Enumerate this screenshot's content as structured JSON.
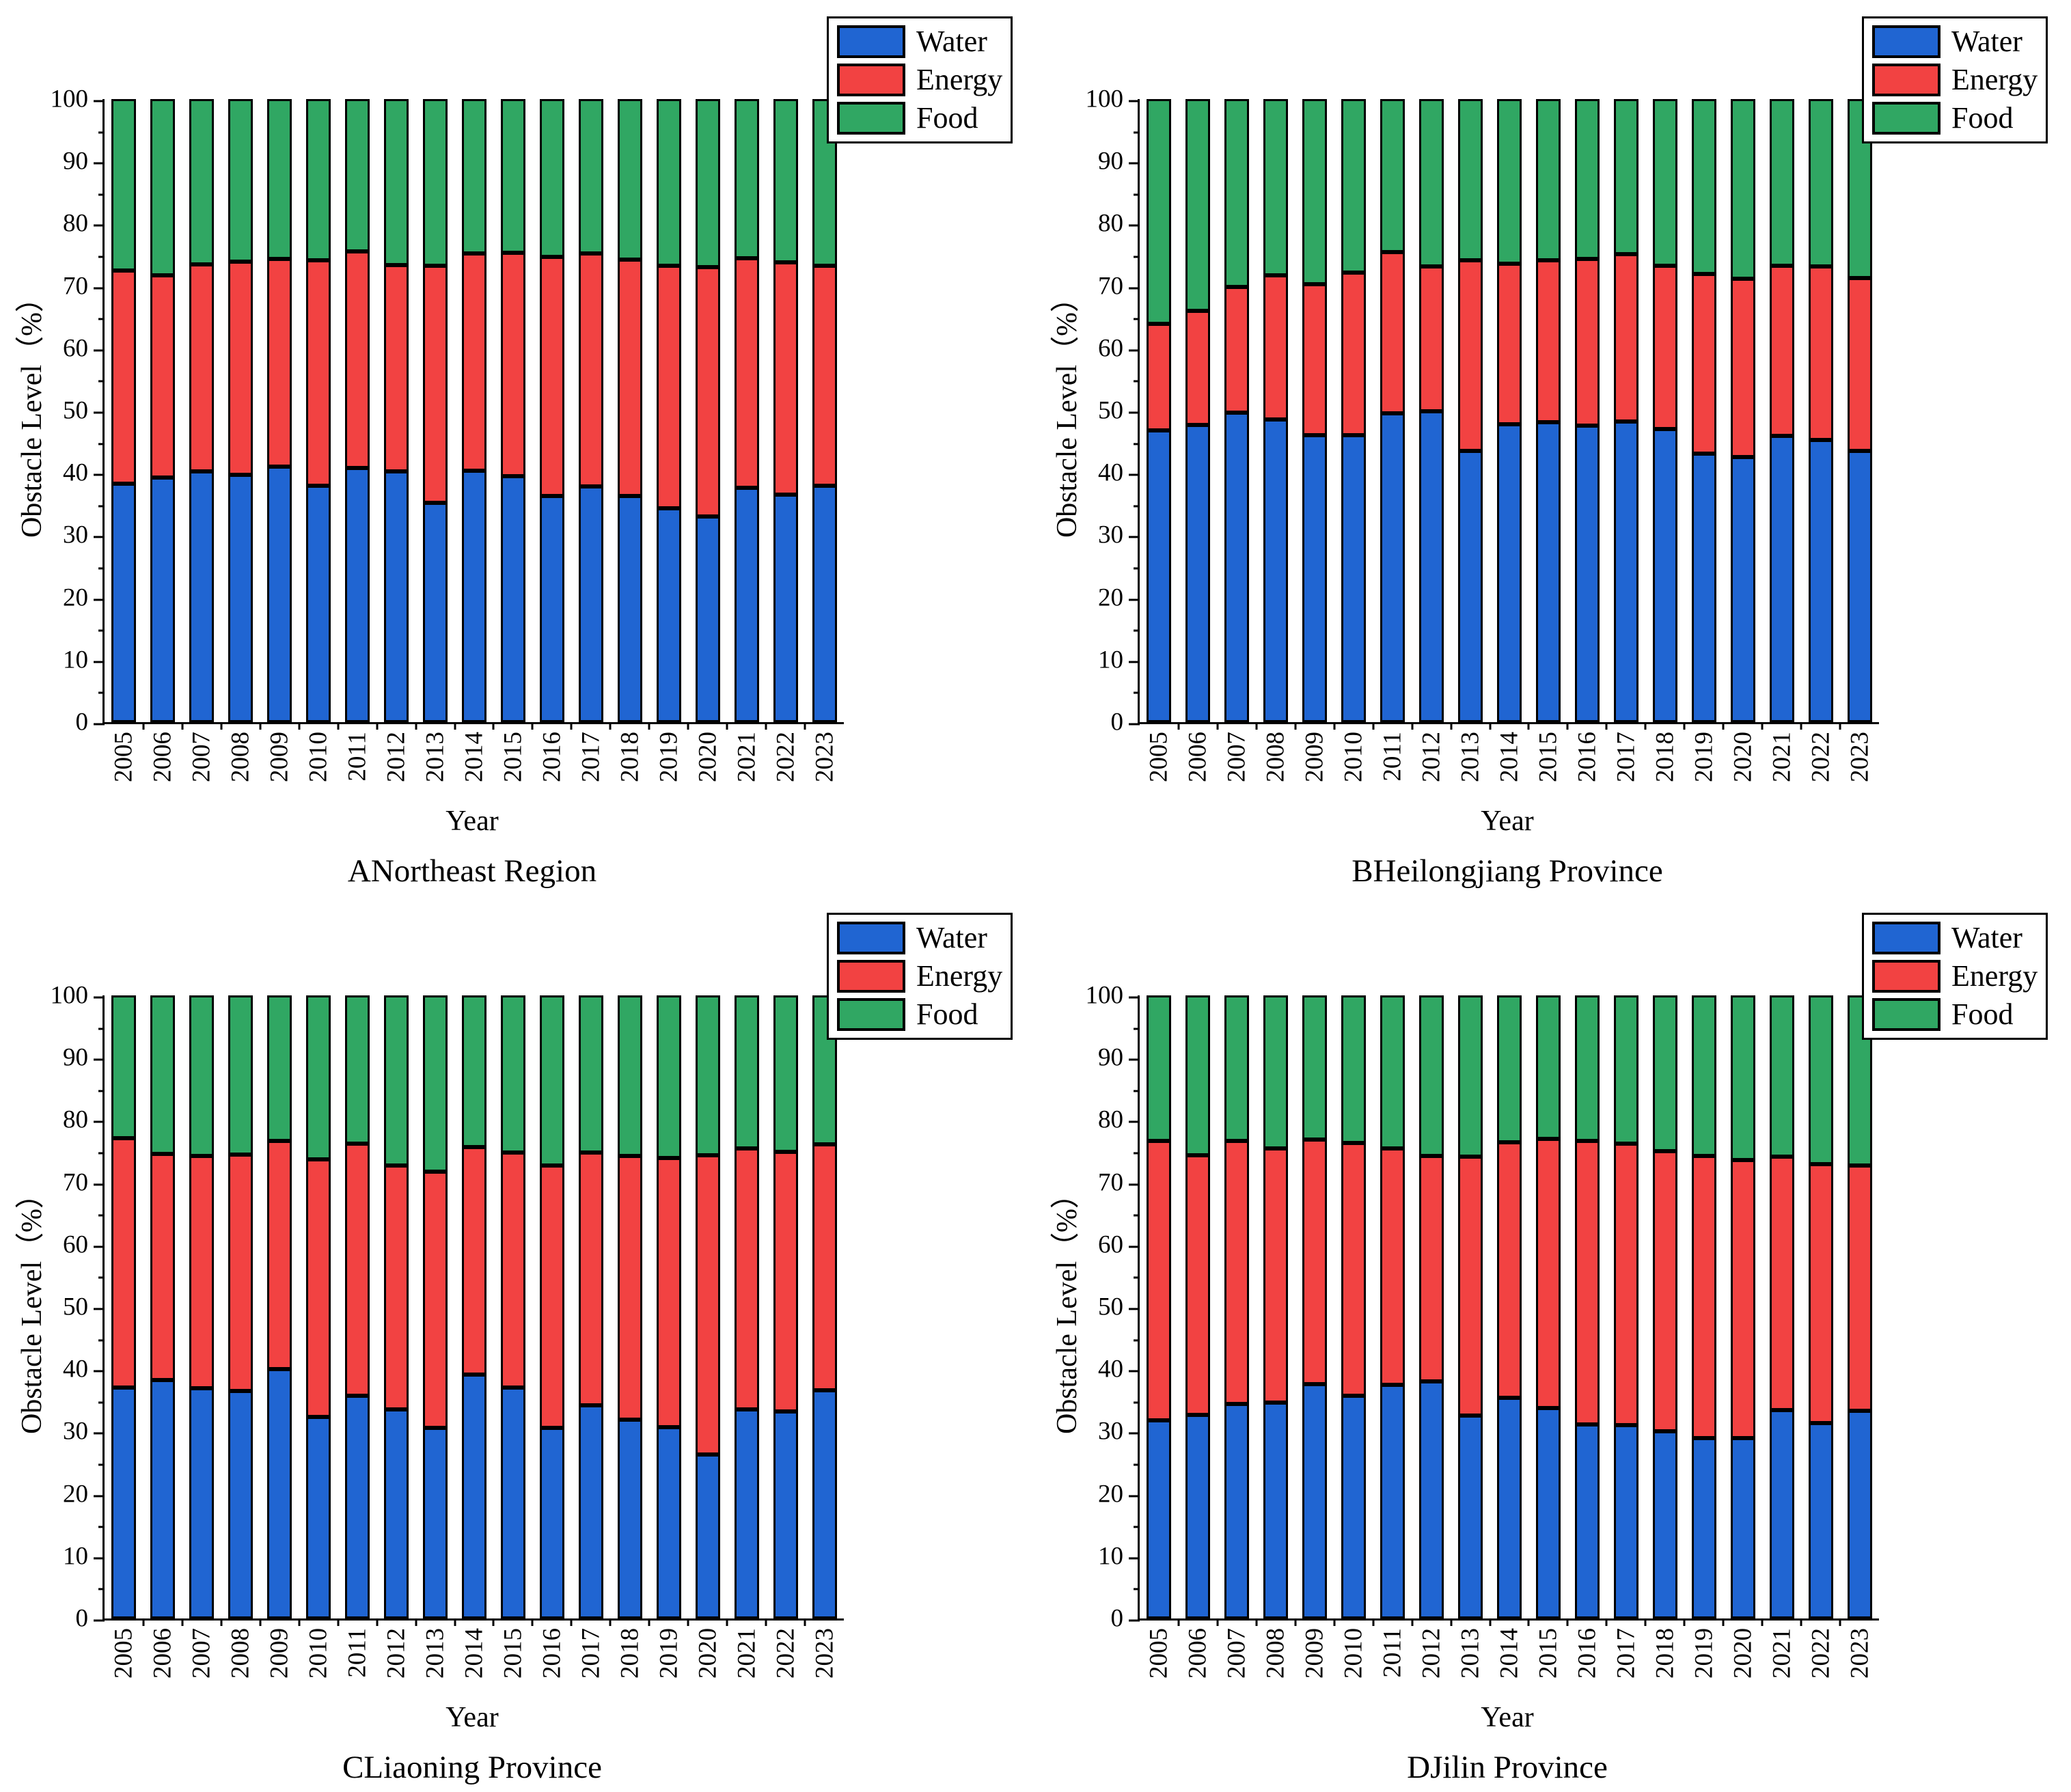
{
  "figure": {
    "ylabel": "Obstacle Level（%）",
    "xlabel": "Year",
    "legend": [
      "Water",
      "Energy",
      "Food"
    ],
    "colors": {
      "water": "#2065d2",
      "energy": "#f24242",
      "food": "#30a763",
      "axis": "#000000",
      "background": "#ffffff"
    },
    "axis": {
      "ylim": [
        0,
        100
      ],
      "ytick_step": 10,
      "yminor_step": 5,
      "yticks": [
        "0",
        "10",
        "20",
        "30",
        "40",
        "50",
        "60",
        "70",
        "80",
        "90",
        "100"
      ]
    }
  },
  "chart_data": [
    {
      "type": "bar",
      "stacked": true,
      "title": "ANortheast Region",
      "xlabel": "Year",
      "ylabel": "Obstacle Level（%）",
      "ylim": [
        0,
        100
      ],
      "grid": false,
      "legend_position": "top-right",
      "categories": [
        "2005",
        "2006",
        "2007",
        "2008",
        "2009",
        "2010",
        "2011",
        "2012",
        "2013",
        "2014",
        "2015",
        "2016",
        "2017",
        "2018",
        "2019",
        "2020",
        "2021",
        "2022",
        "2023"
      ],
      "series": [
        {
          "name": "Water",
          "values": [
            38.3,
            39.3,
            40.2,
            39.7,
            41.0,
            37.9,
            40.8,
            40.2,
            35.2,
            40.4,
            39.5,
            36.3,
            37.8,
            36.3,
            34.3,
            33.0,
            37.6,
            36.5,
            37.9
          ]
        },
        {
          "name": "Energy",
          "values": [
            34.2,
            32.4,
            33.3,
            34.2,
            33.3,
            36.2,
            34.8,
            33.2,
            38.0,
            34.8,
            35.8,
            38.4,
            37.4,
            37.9,
            39.0,
            40.0,
            36.8,
            37.3,
            35.3
          ]
        },
        {
          "name": "Food",
          "values": [
            27.5,
            28.3,
            26.5,
            26.1,
            25.7,
            25.9,
            24.4,
            26.6,
            26.8,
            24.8,
            24.7,
            25.3,
            24.8,
            25.8,
            26.7,
            27.0,
            25.6,
            26.2,
            26.8
          ]
        }
      ]
    },
    {
      "type": "bar",
      "stacked": true,
      "title": "BHeilongjiang Province",
      "xlabel": "Year",
      "ylabel": "Obstacle Level（%）",
      "ylim": [
        0,
        100
      ],
      "grid": false,
      "legend_position": "top-right",
      "categories": [
        "2005",
        "2006",
        "2007",
        "2008",
        "2009",
        "2010",
        "2011",
        "2012",
        "2013",
        "2014",
        "2015",
        "2016",
        "2017",
        "2018",
        "2019",
        "2020",
        "2021",
        "2022",
        "2023"
      ],
      "series": [
        {
          "name": "Water",
          "values": [
            46.8,
            47.7,
            49.7,
            48.6,
            46.0,
            46.0,
            49.6,
            49.9,
            43.5,
            47.8,
            48.1,
            47.6,
            48.2,
            47.0,
            43.1,
            42.6,
            45.9,
            45.3,
            43.5
          ]
        },
        {
          "name": "Energy",
          "values": [
            17.1,
            18.3,
            20.2,
            23.1,
            24.3,
            26.1,
            25.8,
            23.2,
            30.6,
            25.8,
            26.0,
            26.7,
            26.9,
            26.3,
            28.8,
            28.6,
            27.4,
            27.8,
            27.8
          ]
        },
        {
          "name": "Food",
          "values": [
            36.1,
            34.0,
            30.1,
            28.3,
            29.7,
            27.9,
            24.6,
            26.9,
            25.9,
            26.4,
            25.9,
            25.7,
            24.9,
            26.7,
            28.1,
            28.8,
            26.7,
            26.9,
            28.7
          ]
        }
      ]
    },
    {
      "type": "bar",
      "stacked": true,
      "title": "CLiaoning Province",
      "xlabel": "Year",
      "ylabel": "Obstacle Level（%）",
      "ylim": [
        0,
        100
      ],
      "grid": false,
      "legend_position": "top-right",
      "categories": [
        "2005",
        "2006",
        "2007",
        "2008",
        "2009",
        "2010",
        "2011",
        "2012",
        "2013",
        "2014",
        "2015",
        "2016",
        "2017",
        "2018",
        "2019",
        "2020",
        "2021",
        "2022",
        "2023"
      ],
      "series": [
        {
          "name": "Water",
          "values": [
            37.1,
            38.3,
            37.0,
            36.5,
            40.0,
            32.3,
            35.8,
            33.6,
            30.6,
            39.1,
            37.1,
            30.6,
            34.2,
            31.9,
            30.7,
            26.3,
            33.6,
            33.2,
            36.6
          ]
        },
        {
          "name": "Energy",
          "values": [
            40.0,
            36.3,
            37.2,
            38.0,
            36.6,
            41.4,
            40.4,
            39.1,
            41.1,
            36.6,
            37.7,
            42.1,
            40.6,
            42.3,
            43.2,
            48.0,
            41.8,
            41.7,
            39.5
          ]
        },
        {
          "name": "Food",
          "values": [
            22.9,
            25.4,
            25.8,
            25.5,
            23.4,
            26.3,
            23.8,
            27.3,
            28.3,
            24.3,
            25.2,
            27.3,
            25.2,
            25.8,
            26.1,
            25.7,
            24.6,
            25.1,
            23.9
          ]
        }
      ]
    },
    {
      "type": "bar",
      "stacked": true,
      "title": "DJilin Province",
      "xlabel": "Year",
      "ylabel": "Obstacle Level（%）",
      "ylim": [
        0,
        100
      ],
      "grid": false,
      "legend_position": "top-right",
      "categories": [
        "2005",
        "2006",
        "2007",
        "2008",
        "2009",
        "2010",
        "2011",
        "2012",
        "2013",
        "2014",
        "2015",
        "2016",
        "2017",
        "2018",
        "2019",
        "2020",
        "2021",
        "2022",
        "2023"
      ],
      "series": [
        {
          "name": "Water",
          "values": [
            31.8,
            32.7,
            34.4,
            34.7,
            37.6,
            35.8,
            37.5,
            38.1,
            32.6,
            35.4,
            33.8,
            31.1,
            31.0,
            30.0,
            29.0,
            29.0,
            33.4,
            31.4,
            33.3
          ]
        },
        {
          "name": "Energy",
          "values": [
            44.8,
            41.6,
            42.2,
            40.7,
            39.3,
            40.5,
            37.9,
            36.1,
            41.5,
            41.0,
            43.2,
            45.6,
            45.2,
            45.0,
            45.2,
            44.6,
            40.7,
            41.5,
            39.4
          ]
        },
        {
          "name": "Food",
          "values": [
            23.4,
            25.7,
            23.4,
            24.6,
            23.1,
            23.7,
            24.6,
            25.8,
            25.9,
            23.6,
            23.0,
            23.3,
            23.8,
            25.0,
            25.8,
            26.4,
            25.9,
            27.1,
            27.3
          ]
        }
      ]
    }
  ]
}
